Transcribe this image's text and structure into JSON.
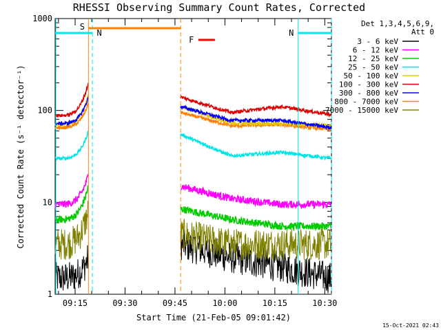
{
  "chart_data": {
    "type": "line",
    "title": "RHESSI Observing Summary Count Rates, Corrected",
    "xlabel": "Start Time (21-Feb-05 09:01:42)",
    "ylabel": "Corrected Count Rate (s⁻¹ detector⁻¹)",
    "yscale": "log",
    "ylim": [
      1,
      1000
    ],
    "xlim_minutes": [
      9.0,
      92.0
    ],
    "x_unit": "minutes after 09:00",
    "y_ticks": [
      "1",
      "10",
      "100",
      "1000"
    ],
    "x_ticks": [
      {
        "label": "09:15",
        "value": 15
      },
      {
        "label": "09:30",
        "value": 30
      },
      {
        "label": "09:45",
        "value": 45
      },
      {
        "label": "10:00",
        "value": 60
      },
      {
        "label": "10:15",
        "value": 75
      },
      {
        "label": "10:30",
        "value": 90
      }
    ],
    "legend_header": [
      "Det 1,3,4,5,6,9,",
      "Att 0"
    ],
    "series": [
      {
        "name": "3 - 6 keV",
        "color": "#000000"
      },
      {
        "name": "6 - 12 keV",
        "color": "#ff00ff"
      },
      {
        "name": "12 - 25 keV",
        "color": "#00cc00"
      },
      {
        "name": "25 - 50 keV",
        "color": "#00e5e5"
      },
      {
        "name": "50 - 100 keV",
        "color": "#e6c800"
      },
      {
        "name": "100 - 300 keV",
        "color": "#dd0000"
      },
      {
        "name": "300 - 800 keV",
        "color": "#0000ff"
      },
      {
        "name": "800 - 7000 keV",
        "color": "#ff8000"
      },
      {
        "name": "7000 - 15000 keV",
        "color": "#808000"
      }
    ],
    "segments": [
      {
        "start": 9.0,
        "end": 19.0
      },
      {
        "start": 46.7,
        "end": 92.0
      }
    ],
    "levels_seg1_end": [
      {
        "name": "3 - 6 keV",
        "start": 1.5,
        "end": 2.5
      },
      {
        "name": "6 - 12 keV",
        "start": 9.5,
        "end": 20
      },
      {
        "name": "12 - 25 keV",
        "start": 6.5,
        "end": 15
      },
      {
        "name": "25 - 50 keV",
        "start": 30,
        "end": 60
      },
      {
        "name": "50 - 100 keV",
        "start": 70,
        "end": 150
      },
      {
        "name": "100 - 300 keV",
        "start": 88,
        "end": 200
      },
      {
        "name": "300 - 800 keV",
        "start": 72,
        "end": 140
      },
      {
        "name": "800 - 7000 keV",
        "start": 65,
        "end": 120
      },
      {
        "name": "7000 - 15000 keV",
        "start": 3.5,
        "end": 8
      }
    ],
    "levels_seg2": [
      {
        "name": "3 - 6 keV",
        "values": [
          3.5,
          2.5,
          2.0,
          1.5
        ]
      },
      {
        "name": "6 - 12 keV",
        "values": [
          15,
          11,
          9.5,
          9.5
        ]
      },
      {
        "name": "12 - 25 keV",
        "values": [
          8.5,
          6.5,
          5.5,
          5.5
        ]
      },
      {
        "name": "25 - 50 keV",
        "values": [
          55,
          32,
          35,
          30
        ]
      },
      {
        "name": "50 - 100 keV",
        "values": [
          110,
          73,
          72,
          68
        ]
      },
      {
        "name": "100 - 300 keV",
        "values": [
          140,
          95,
          110,
          90
        ]
      },
      {
        "name": "300 - 800 keV",
        "values": [
          110,
          78,
          78,
          65
        ]
      },
      {
        "name": "800 - 7000 keV",
        "values": [
          95,
          68,
          70,
          62
        ]
      },
      {
        "name": "7000 - 15000 keV",
        "values": [
          4.5,
          3.5,
          3.5,
          3.5
        ]
      }
    ],
    "annotations": [
      {
        "label": "S",
        "start": 19.0,
        "end": 46.7,
        "color": "#ff8000",
        "kind": "SAA"
      },
      {
        "label": "N",
        "start": 9.0,
        "end": 20.2,
        "color": "#00e5e5",
        "kind": "Night"
      },
      {
        "label": "N",
        "start": 82.0,
        "end": 92.0,
        "color": "#00e5e5",
        "kind": "Night"
      },
      {
        "label": "F",
        "start": 52.0,
        "end": 57.0,
        "color": "#ff0000",
        "kind": "Flare"
      }
    ],
    "timestamp": "15-Oct-2021 02:43"
  }
}
